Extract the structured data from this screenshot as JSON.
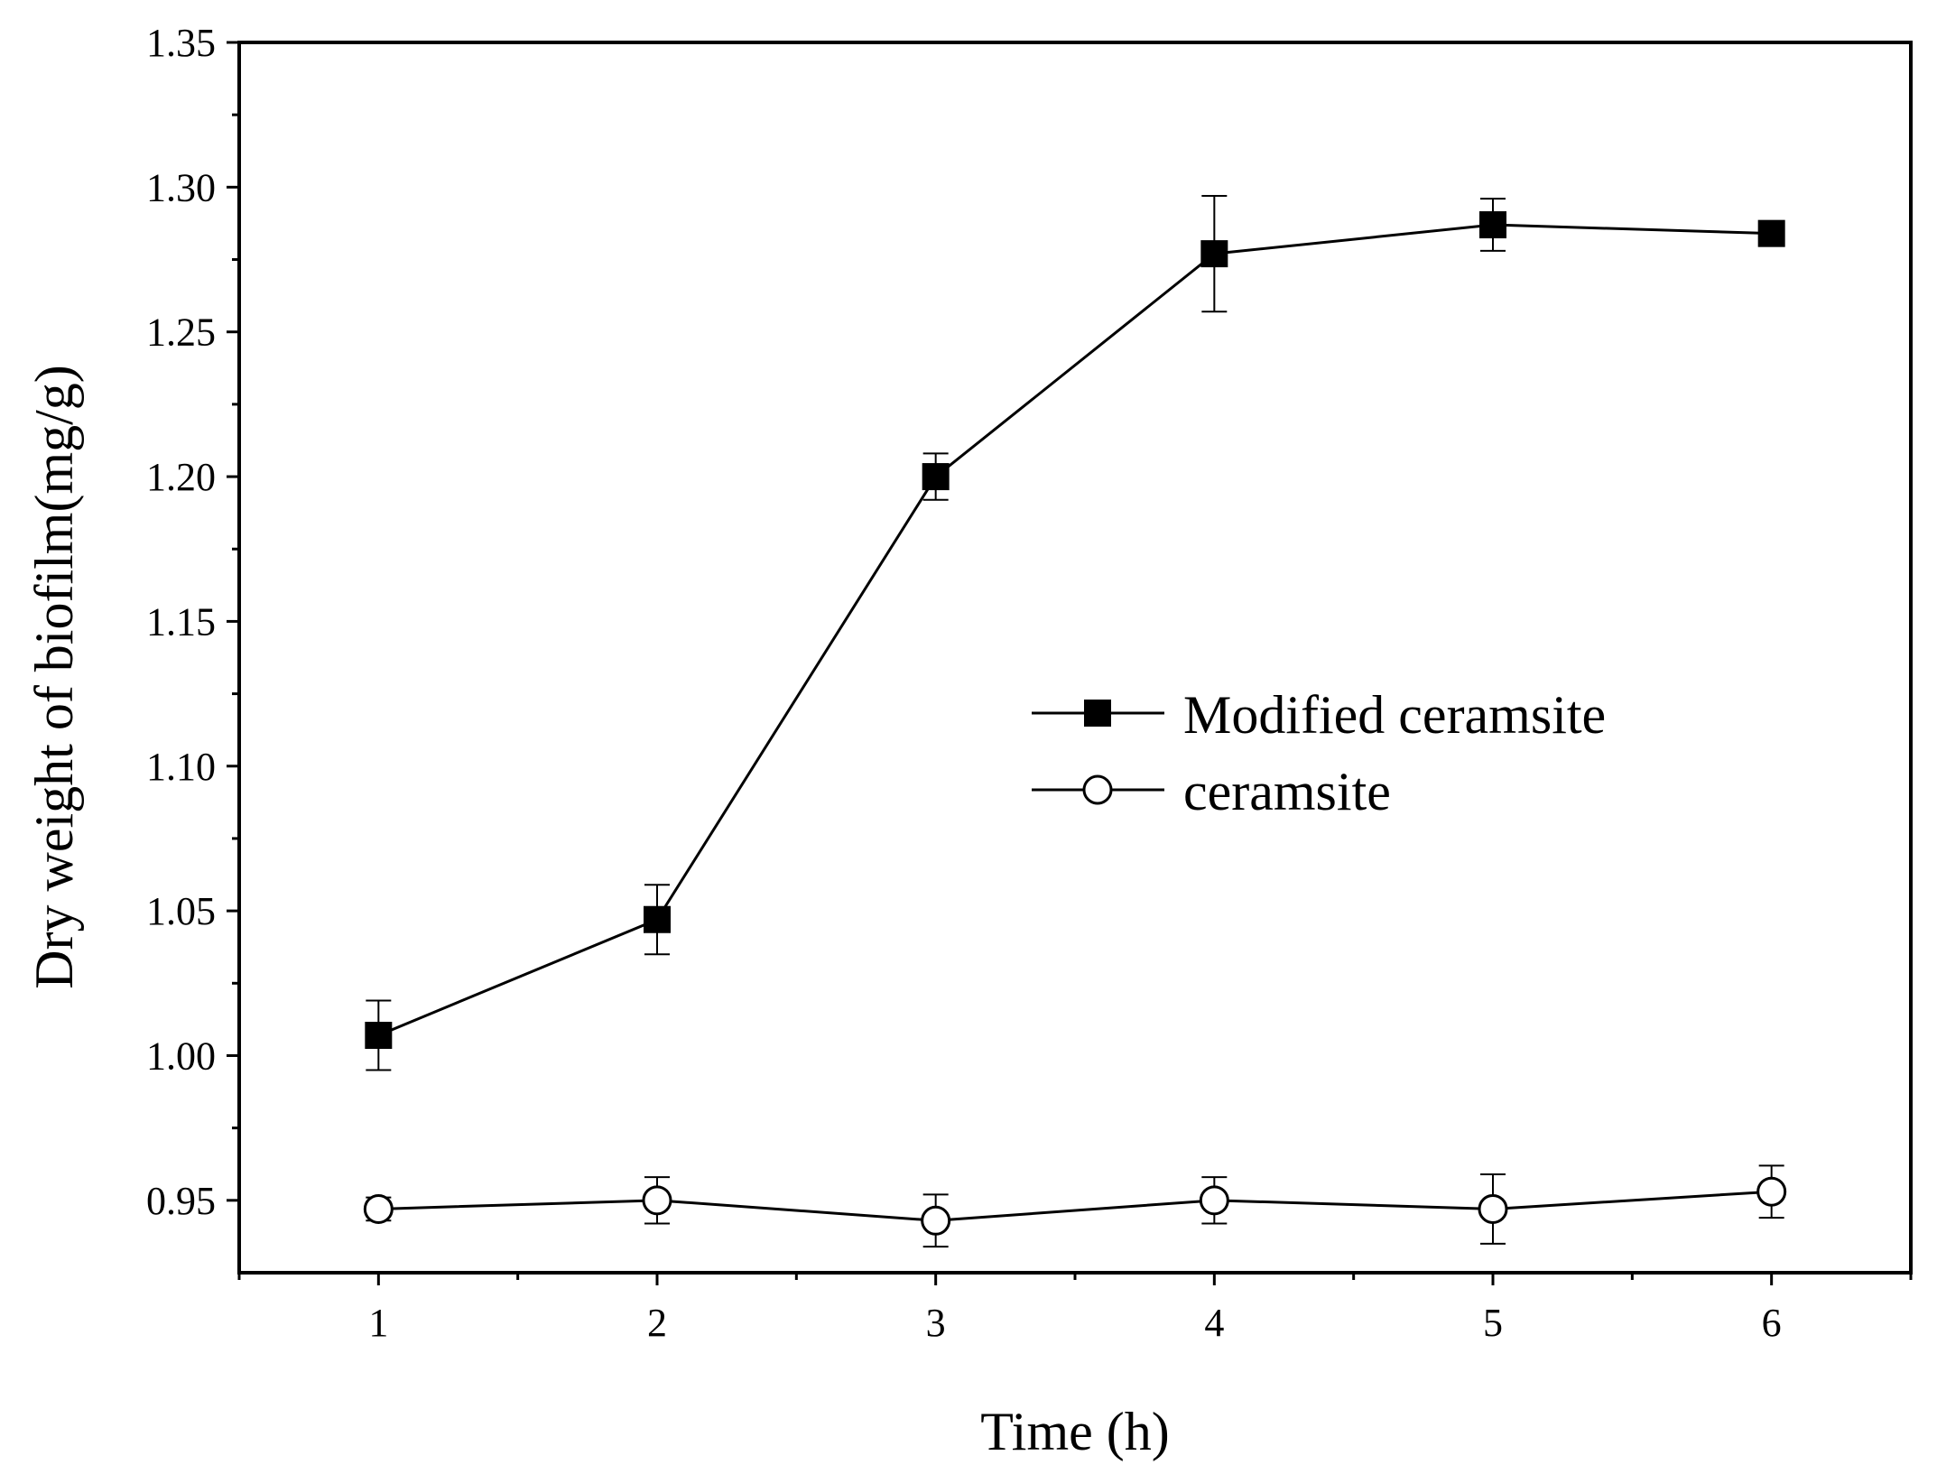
{
  "chart_data": {
    "type": "line",
    "title": "",
    "xlabel": "Time (h)",
    "ylabel": "Dry weight of biofilm(mg/g)",
    "xlim": [
      0.5,
      6.5
    ],
    "ylim": [
      0.925,
      1.35
    ],
    "x_ticks": [
      1,
      2,
      3,
      4,
      5,
      6
    ],
    "x_tick_labels": [
      "1",
      "2",
      "3",
      "4",
      "5",
      "6"
    ],
    "y_ticks": [
      0.95,
      1.0,
      1.05,
      1.1,
      1.15,
      1.2,
      1.25,
      1.3,
      1.35
    ],
    "y_tick_labels": [
      "0.95",
      "1.00",
      "1.05",
      "1.10",
      "1.15",
      "1.20",
      "1.25",
      "1.30",
      "1.35"
    ],
    "grid": false,
    "legend_position": "center-right",
    "series": [
      {
        "name": "Modified ceramsite",
        "marker": "filled-square",
        "color": "#000000",
        "x": [
          1,
          2,
          3,
          4,
          5,
          6
        ],
        "values": [
          1.007,
          1.047,
          1.2,
          1.277,
          1.287,
          1.284
        ],
        "errors": [
          0.012,
          0.012,
          0.008,
          0.02,
          0.009,
          0.0
        ]
      },
      {
        "name": "ceramsite",
        "marker": "open-circle",
        "color": "#000000",
        "x": [
          1,
          2,
          3,
          4,
          5,
          6
        ],
        "values": [
          0.947,
          0.95,
          0.943,
          0.95,
          0.947,
          0.953
        ],
        "errors": [
          0.004,
          0.008,
          0.009,
          0.008,
          0.012,
          0.009
        ]
      }
    ]
  }
}
